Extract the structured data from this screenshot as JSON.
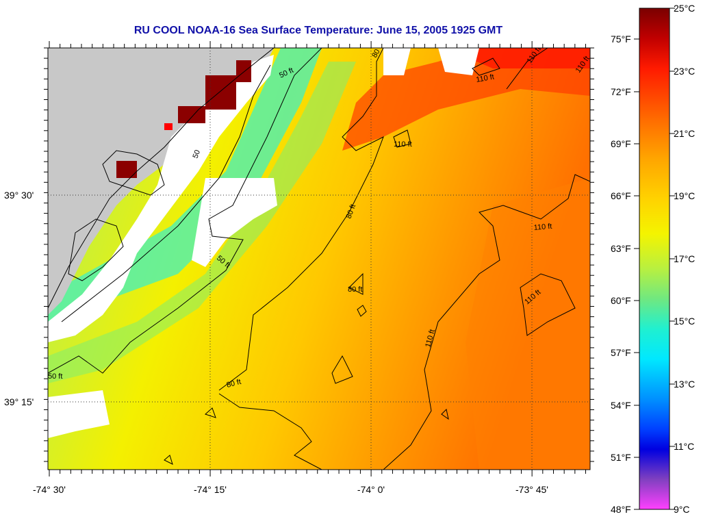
{
  "title": "RU COOL  NOAA-16  Sea Surface Temperature:  June 15, 2005 1925 GMT",
  "axes": {
    "lon_ticks": [
      "-74° 30'",
      "-74° 15'",
      "-74° 0'",
      "-73° 45'"
    ],
    "lat_ticks": [
      "39° 30'",
      "39° 15'"
    ]
  },
  "colorbar": {
    "celsius": [
      "25°C",
      "23°C",
      "21°C",
      "19°C",
      "17°C",
      "15°C",
      "13°C",
      "11°C",
      "9°C"
    ],
    "fahrenheit": [
      "75°F",
      "72°F",
      "69°F",
      "66°F",
      "63°F",
      "60°F",
      "57°F",
      "54°F",
      "51°F",
      "48°F"
    ],
    "stops": [
      "#7a0000",
      "#c00000",
      "#ff1a00",
      "#ff6a00",
      "#ffa500",
      "#ffd200",
      "#f4f400",
      "#b8f040",
      "#70e880",
      "#20f0d0",
      "#00e8ff",
      "#0090ff",
      "#0040ff",
      "#0000e0",
      "#8040c0",
      "#ff40ff"
    ]
  },
  "contours": {
    "labels_50": [
      "50 ft",
      "50 ft",
      "50 ft",
      "50"
    ],
    "labels_80": [
      "80 ft",
      "80 ft",
      "80 ft",
      "80"
    ],
    "labels_110": [
      "110 ft",
      "110 ft",
      "110 ft",
      "110 ft",
      "110 ft",
      "110 ft",
      "110 ft"
    ]
  },
  "colors": {
    "land": "#c8c8c8",
    "cloud": "#ffffff",
    "frame": "#000000",
    "title": "#1010a8"
  }
}
